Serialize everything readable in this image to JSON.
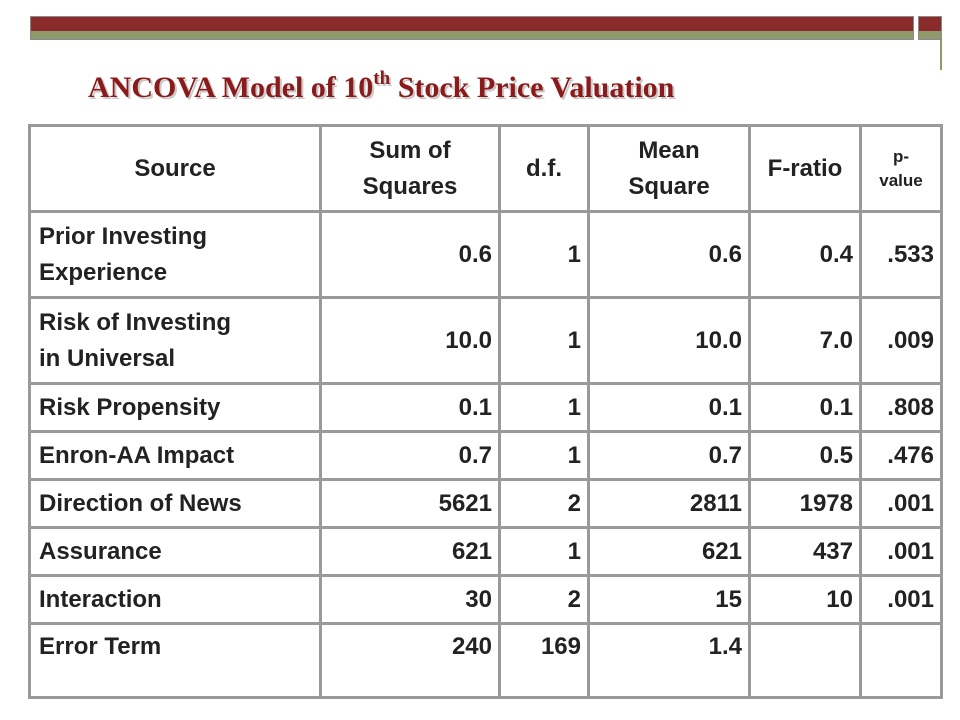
{
  "title": {
    "main": "ANCOVA Model of 10",
    "superscript": "th",
    "rest": " Stock Price Valuation"
  },
  "colors": {
    "accent_maroon": "#8b2a2a",
    "accent_olive": "#8e9a6a",
    "title_color": "#8b1a1a",
    "grid_gray": "#9a9a9a"
  },
  "table": {
    "headers": {
      "source": "Source",
      "ss_line1": "Sum of",
      "ss_line2": "Squares",
      "df": "d.f.",
      "ms_line1": "Mean",
      "ms_line2": "Square",
      "f": "F-ratio",
      "p_line1": "p-",
      "p_line2": "value"
    },
    "rows": [
      {
        "source_line1": "Prior Investing",
        "source_line2": "Experience",
        "ss": "0.6",
        "df": "1",
        "ms": "0.6",
        "f": "0.4",
        "p": ".533"
      },
      {
        "source_line1": "Risk of Investing",
        "source_line2": "in Universal",
        "ss": "10.0",
        "df": "1",
        "ms": "10.0",
        "f": "7.0",
        "p": ".009"
      },
      {
        "source": "Risk Propensity",
        "ss": "0.1",
        "df": "1",
        "ms": "0.1",
        "f": "0.1",
        "p": ".808"
      },
      {
        "source": "Enron-AA Impact",
        "ss": "0.7",
        "df": "1",
        "ms": "0.7",
        "f": "0.5",
        "p": ".476"
      },
      {
        "source": "Direction of News",
        "ss": "5621",
        "df": "2",
        "ms": "2811",
        "f": "1978",
        "p": ".001"
      },
      {
        "source": "Assurance",
        "ss": "621",
        "df": "1",
        "ms": "621",
        "f": "437",
        "p": ".001"
      },
      {
        "source": "Interaction",
        "ss": "30",
        "df": "2",
        "ms": "15",
        "f": "10",
        "p": ".001"
      },
      {
        "source": "Error Term",
        "ss": "240",
        "df": "169",
        "ms": "1.4",
        "f": "",
        "p": ""
      }
    ]
  }
}
